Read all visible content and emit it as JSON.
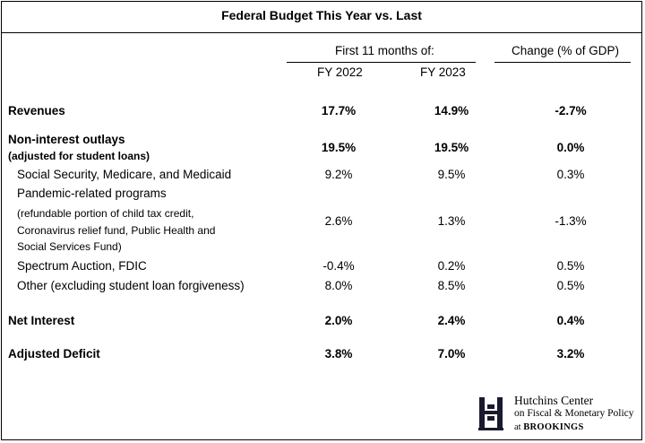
{
  "title": "Federal Budget This Year vs. Last",
  "header": {
    "group_label": "First 11 months of:",
    "change_label": "Change (% of GDP)",
    "col1": "FY 2022",
    "col2": "FY 2023"
  },
  "rows": [
    {
      "label": "Revenues",
      "v1": "17.7%",
      "v2": "14.9%",
      "v3": "-2.7%"
    },
    {
      "label": "Non-interest outlays",
      "sublabel": "(adjusted for student loans)",
      "v1": "19.5%",
      "v2": "19.5%",
      "v3": "0.0%"
    },
    {
      "label": "Social Security, Medicare, and Medicaid",
      "v1": "9.2%",
      "v2": "9.5%",
      "v3": "0.3%"
    },
    {
      "label": "Pandemic-related programs",
      "note1": "(refundable portion of child tax credit,",
      "note2": "Coronavirus relief fund, Public Health and",
      "note3": "Social Services Fund)",
      "v1": "2.6%",
      "v2": "1.3%",
      "v3": "-1.3%"
    },
    {
      "label": "Spectrum Auction, FDIC",
      "v1": "-0.4%",
      "v2": "0.2%",
      "v3": "0.5%"
    },
    {
      "label": "Other (excluding student loan forgiveness)",
      "v1": "8.0%",
      "v2": "8.5%",
      "v3": "0.5%"
    },
    {
      "label": "Net Interest",
      "v1": "2.0%",
      "v2": "2.4%",
      "v3": "0.4%"
    },
    {
      "label": "Adjusted Deficit",
      "v1": "3.8%",
      "v2": "7.0%",
      "v3": "3.2%"
    }
  ],
  "logo": {
    "line1": "Hutchins Center",
    "line2": "on Fiscal & Monetary Policy",
    "line3_prefix": "at",
    "line3_name": "BROOKINGS"
  }
}
